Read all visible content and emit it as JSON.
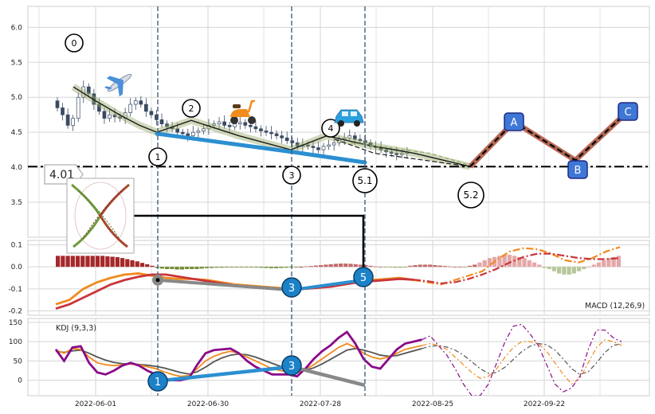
{
  "chart_data": [
    {
      "panel": "price",
      "type": "candlestick",
      "y_ticks": [
        "6.0",
        "5.5",
        "5.0",
        "4.5",
        "4.0",
        "3.5"
      ],
      "ylim": [
        3.0,
        6.3
      ],
      "grid": true,
      "x_ticks": [
        "2022-06-01",
        "2022-06-30",
        "2022-07-28",
        "2022-08-25",
        "2022-09-22"
      ],
      "support_level": 4.01,
      "support_label": "4.01",
      "candles_open": [
        4.95,
        4.85,
        4.75,
        4.6,
        4.7,
        5.0,
        5.15,
        5.05,
        4.9,
        4.8,
        4.7,
        4.75,
        4.72,
        4.7,
        4.78,
        4.9,
        4.95,
        4.9,
        4.8,
        4.75,
        4.68,
        4.62,
        4.58,
        4.55,
        4.5,
        4.48,
        4.45,
        4.5,
        4.52,
        4.55,
        4.6,
        4.62,
        4.65,
        4.6,
        4.58,
        4.62,
        4.64,
        4.6,
        4.58,
        4.55,
        4.52,
        4.5,
        4.48,
        4.45,
        4.42,
        4.38,
        4.35,
        4.3,
        4.32,
        4.3,
        4.28,
        4.25,
        4.3,
        4.32,
        4.35,
        4.4,
        4.42,
        4.45,
        4.4,
        4.38,
        4.35,
        4.3,
        4.28,
        4.25,
        4.22,
        4.2,
        4.18,
        4.2
      ],
      "candles_close": [
        4.85,
        4.75,
        4.6,
        4.7,
        5.0,
        5.15,
        5.05,
        4.9,
        4.8,
        4.7,
        4.75,
        4.72,
        4.7,
        4.78,
        4.9,
        4.95,
        4.9,
        4.8,
        4.75,
        4.68,
        4.62,
        4.58,
        4.55,
        4.5,
        4.48,
        4.45,
        4.5,
        4.52,
        4.55,
        4.6,
        4.62,
        4.65,
        4.6,
        4.58,
        4.62,
        4.64,
        4.6,
        4.58,
        4.55,
        4.52,
        4.5,
        4.48,
        4.45,
        4.42,
        4.38,
        4.35,
        4.3,
        4.32,
        4.3,
        4.28,
        4.25,
        4.3,
        4.32,
        4.35,
        4.4,
        4.42,
        4.45,
        4.4,
        4.38,
        4.35,
        4.3,
        4.28,
        4.25,
        4.22,
        4.2,
        4.18,
        4.2,
        4.22
      ],
      "markers": [
        {
          "label": "0",
          "desc": "wave-0-label"
        },
        {
          "label": "1",
          "desc": "wave-1-label"
        },
        {
          "label": "2",
          "desc": "wave-2-label"
        },
        {
          "label": "3",
          "desc": "wave-3-label"
        },
        {
          "label": "4",
          "desc": "wave-4-label"
        },
        {
          "label": "5.1",
          "desc": "wave-5-1-label"
        },
        {
          "label": "5.2",
          "desc": "wave-5-2-label"
        },
        {
          "label": "A",
          "desc": "wave-a-label"
        },
        {
          "label": "B",
          "desc": "wave-b-label"
        },
        {
          "label": "C",
          "desc": "wave-c-label"
        }
      ],
      "icons": [
        "airplane-icon",
        "scooter-icon",
        "car-icon",
        "butterfly-thumbnail"
      ]
    },
    {
      "panel": "macd",
      "type": "bar+line",
      "legend_label": "MACD (12,26,9)",
      "y_ticks": [
        "0.1",
        "0.0",
        "-0.1",
        "-0.2"
      ],
      "ylim": [
        -0.22,
        0.12
      ],
      "hist": [
        0.05,
        0.05,
        0.05,
        0.05,
        0.05,
        0.05,
        0.05,
        0.05,
        0.05,
        0.05,
        0.048,
        0.046,
        0.044,
        0.04,
        0.035,
        0.03,
        0.025,
        0.018,
        0.012,
        0.005,
        -0.005,
        -0.008,
        -0.01,
        -0.01,
        -0.012,
        -0.012,
        -0.01,
        -0.01,
        -0.01,
        -0.008,
        -0.006,
        -0.005,
        -0.004,
        -0.004,
        -0.003,
        -0.003,
        -0.002,
        -0.002,
        -0.002,
        -0.002,
        -0.003,
        -0.004,
        -0.005,
        -0.006,
        -0.006,
        -0.005,
        -0.004,
        -0.003,
        -0.002,
        0,
        0.002,
        0.004,
        0.006,
        0.008,
        0.01,
        0.012,
        0.014,
        0.015,
        0.015,
        0.014,
        0.012,
        0.01,
        0.008,
        0.005,
        0.002,
        0,
        -0.002,
        -0.003,
        -0.004,
        -0.004,
        -0.003,
        0.005,
        0.008,
        0.01,
        0.01,
        0.01,
        0.008,
        0.006,
        0.004,
        0.002,
        0,
        0,
        -0.002,
        0.005,
        0.01,
        0.02,
        0.03,
        0.04,
        0.045,
        0.05,
        0.055,
        0.055,
        0.05,
        0.045,
        0.04,
        0.03,
        0.02,
        0.01,
        -0.005,
        -0.01,
        -0.02,
        -0.03,
        -0.035,
        -0.035,
        -0.03,
        -0.02,
        -0.01,
        0,
        0.01,
        0.02,
        0.03,
        0.04,
        0.045,
        0.05
      ],
      "macd_line": [
        -0.17,
        -0.15,
        -0.1,
        -0.07,
        -0.05,
        -0.035,
        -0.03,
        -0.04,
        -0.05,
        -0.055,
        -0.055,
        -0.06,
        -0.07,
        -0.08,
        -0.085,
        -0.09,
        -0.095,
        -0.1,
        -0.1,
        -0.095,
        -0.085,
        -0.07,
        -0.065,
        -0.06,
        -0.055,
        -0.05,
        -0.06,
        -0.07,
        -0.08,
        -0.06,
        -0.04,
        -0.02,
        0.03,
        0.07,
        0.085,
        0.08,
        0.06,
        0.03,
        0.02,
        0.04,
        0.07,
        0.09
      ],
      "signal_line": [
        -0.19,
        -0.17,
        -0.14,
        -0.11,
        -0.08,
        -0.06,
        -0.045,
        -0.035,
        -0.035,
        -0.045,
        -0.055,
        -0.065,
        -0.075,
        -0.085,
        -0.09,
        -0.095,
        -0.098,
        -0.1,
        -0.1,
        -0.095,
        -0.09,
        -0.08,
        -0.07,
        -0.065,
        -0.06,
        -0.055,
        -0.058,
        -0.065,
        -0.075,
        -0.07,
        -0.055,
        -0.035,
        -0.01,
        0.02,
        0.045,
        0.06,
        0.06,
        0.05,
        0.04,
        0.035,
        0.035,
        0.04
      ],
      "markers": [
        {
          "label": "3"
        },
        {
          "label": "5"
        }
      ]
    },
    {
      "panel": "kdj",
      "type": "line",
      "legend_label": "KDJ (9,3,3)",
      "y_ticks": [
        "150",
        "100",
        "50",
        "0"
      ],
      "ylim": [
        -40,
        160
      ],
      "k_line": [
        78,
        70,
        82,
        80,
        60,
        45,
        40,
        38,
        40,
        42,
        40,
        35,
        30,
        22,
        15,
        10,
        12,
        30,
        50,
        62,
        70,
        75,
        70,
        60,
        50,
        40,
        30,
        25,
        22,
        20,
        28,
        40,
        55,
        70,
        85,
        95,
        85,
        70,
        60,
        55,
        60,
        70,
        80,
        85,
        90,
        95,
        90,
        80,
        60,
        40,
        20,
        5,
        10,
        30,
        60,
        85,
        100,
        100,
        95,
        75,
        45,
        15,
        -10,
        5,
        45,
        85,
        105,
        100,
        90
      ],
      "d_line": [
        75,
        72,
        76,
        78,
        70,
        60,
        52,
        46,
        43,
        42,
        41,
        39,
        36,
        32,
        26,
        20,
        16,
        22,
        34,
        48,
        58,
        65,
        68,
        66,
        60,
        52,
        44,
        36,
        30,
        26,
        26,
        32,
        42,
        54,
        66,
        78,
        82,
        78,
        72,
        65,
        62,
        64,
        70,
        76,
        82,
        88,
        90,
        86,
        78,
        65,
        48,
        30,
        18,
        20,
        34,
        54,
        74,
        88,
        95,
        92,
        78,
        55,
        30,
        15,
        22,
        45,
        72,
        90,
        95
      ],
      "j_line": [
        80,
        50,
        85,
        88,
        45,
        20,
        15,
        25,
        38,
        45,
        38,
        25,
        15,
        5,
        0,
        0,
        5,
        40,
        70,
        78,
        80,
        82,
        70,
        50,
        35,
        25,
        15,
        15,
        15,
        10,
        30,
        55,
        75,
        90,
        110,
        125,
        95,
        55,
        35,
        30,
        55,
        80,
        95,
        100,
        105,
        115,
        90,
        65,
        30,
        -10,
        -40,
        -40,
        -10,
        45,
        100,
        140,
        145,
        120,
        90,
        40,
        -10,
        -30,
        -20,
        10,
        80,
        130,
        130,
        110,
        100
      ],
      "markers": [
        {
          "label": "1"
        },
        {
          "label": "3"
        }
      ]
    }
  ]
}
